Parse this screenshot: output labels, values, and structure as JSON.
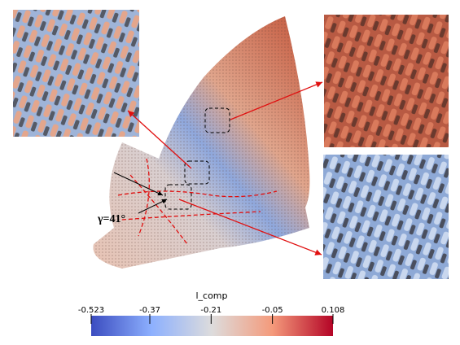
{
  "annotation": "γ=41°",
  "colorbar": {
    "title": "l_comp",
    "range": [
      -0.523,
      0.108
    ],
    "ticks": [
      -0.523,
      -0.37,
      -0.21,
      -0.05,
      0.108
    ]
  }
}
